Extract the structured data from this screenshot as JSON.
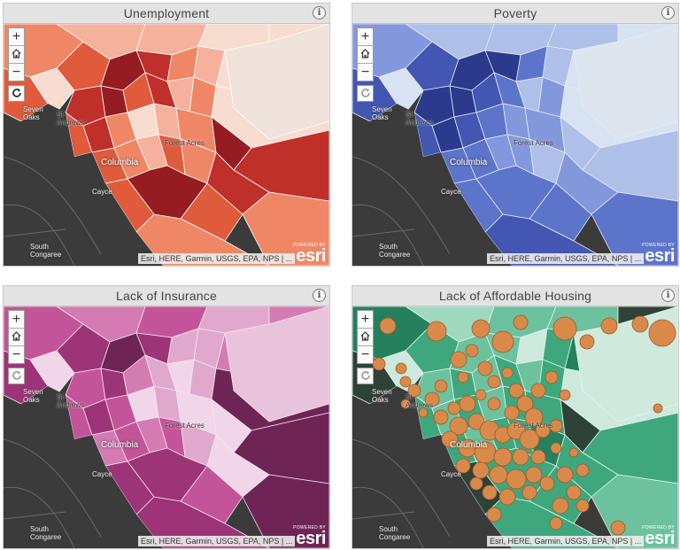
{
  "maps": [
    {
      "id": "unemployment",
      "title": "Unemployment",
      "palette": [
        "#f9dcd0",
        "#f5b19b",
        "#ef8766",
        "#e05a3c",
        "#c0302a",
        "#951d22"
      ],
      "base": "#ec9d82",
      "light": "#f0e3dc",
      "line": "#ffffff",
      "refresh_active": true
    },
    {
      "id": "poverty",
      "title": "Poverty",
      "palette": [
        "#d7e2f3",
        "#aebfe8",
        "#8398dc",
        "#5d74cb",
        "#4256b2",
        "#2b3a8c"
      ],
      "base": "#6c84d3",
      "light": "#dde6ee",
      "line": "#e6ecf6",
      "refresh_active": false
    },
    {
      "id": "insurance",
      "title": "Lack of Insurance",
      "palette": [
        "#f0d6e8",
        "#e1a8cd",
        "#d47bb3",
        "#c45499",
        "#9c3477",
        "#6e2556"
      ],
      "base": "#c45a9f",
      "light": "#e9c3dc",
      "line": "#f6e6ef",
      "refresh_active": false
    },
    {
      "id": "housing",
      "title": "Lack of Affordable Housing",
      "palette": [
        "#cde9dd",
        "#9fd8bf",
        "#6cc29e",
        "#3ea77d",
        "#25805d",
        "#2e4238"
      ],
      "base": "#4fb489",
      "light": "#cfeadd",
      "line": "#e4f4ec",
      "refresh_active": false
    }
  ],
  "places": {
    "seven_oaks": "Seven\nOaks",
    "st_andrews": "St\nAndrews",
    "forest_acres": "Forest Acres",
    "columbia": "Columbia",
    "cayce": "Cayce",
    "south_congaree": "South\nCongaree"
  },
  "controls": {
    "zoom_in": "+",
    "zoom_out": "−",
    "info": "i"
  },
  "attribution": "Esri, HERE, Garmin, USGS, EPA, NPS | ...",
  "logo": {
    "powered": "POWERED BY",
    "word": "esri"
  },
  "colors": {
    "dark_basemap": "#3b3b3b",
    "road": "#6a6a6a",
    "bubble_fill": "#d98a4b",
    "bubble_stroke": "#9a5a2a"
  }
}
